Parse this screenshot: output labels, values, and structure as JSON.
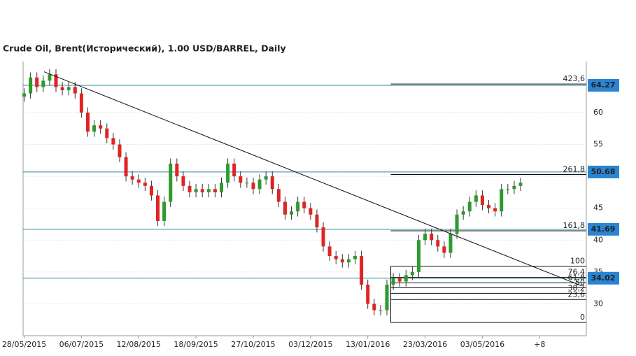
{
  "chart_data": {
    "type": "candlestick",
    "title": "Crude Oil, Brent(Исторический), 1.00 USD/BARREL, Daily",
    "x": [
      0,
      3,
      6,
      9,
      12,
      15,
      18,
      21,
      24,
      27,
      30,
      33,
      36,
      39,
      42,
      45,
      48,
      51,
      54,
      57,
      60,
      63,
      66,
      69,
      72,
      75,
      78,
      81,
      84,
      87,
      90,
      93,
      96,
      99,
      102,
      105,
      108,
      111,
      114,
      117,
      120,
      123,
      126,
      129,
      132,
      135,
      138,
      141,
      144,
      147,
      150,
      153,
      156,
      159,
      162,
      165,
      168,
      171,
      174,
      177,
      180,
      183,
      186,
      189,
      192,
      195,
      198,
      201,
      204,
      207,
      210,
      213,
      216,
      219,
      222,
      225,
      228,
      231,
      234
    ],
    "open": [
      62.5,
      63,
      65.5,
      64,
      65,
      66,
      64,
      63.5,
      64,
      63,
      60,
      57,
      58,
      57.5,
      56,
      55,
      53,
      50,
      49.5,
      49,
      48.5,
      47,
      43,
      46,
      52,
      50,
      48.5,
      47.5,
      48,
      47.5,
      48,
      47.5,
      49,
      52,
      50,
      49,
      49,
      48,
      49.5,
      50,
      48,
      46,
      44,
      44.5,
      46,
      45,
      44,
      42,
      39,
      37.5,
      37,
      36.5,
      37,
      37.5,
      33,
      30,
      29,
      29,
      33,
      34,
      33.5,
      34.5,
      35,
      40,
      41,
      40,
      39,
      38,
      41,
      44,
      44.5,
      46,
      47,
      45.5,
      45,
      44.5,
      48,
      48,
      48.5
    ],
    "high": [
      63.8,
      66.3,
      66.3,
      65.8,
      66.8,
      66.8,
      64.8,
      64.8,
      64.8,
      63.8,
      60.8,
      58.8,
      58.8,
      58.3,
      56.8,
      55.8,
      53.8,
      50.8,
      50.3,
      49.8,
      49.3,
      47.8,
      46.8,
      52.8,
      52.8,
      50.8,
      49.3,
      48.8,
      48.8,
      48.8,
      48.8,
      49.8,
      52.8,
      52.8,
      50.8,
      49.8,
      49.8,
      50.3,
      50.8,
      50.8,
      48.8,
      46.8,
      45.3,
      46.8,
      46.8,
      45.8,
      44.8,
      42.8,
      39.8,
      38.3,
      37.8,
      37.8,
      38.3,
      38.3,
      33.8,
      30.8,
      29.8,
      33.8,
      34.8,
      34.8,
      35.3,
      35.8,
      40.8,
      41.8,
      41.8,
      40.8,
      39.8,
      41.8,
      44.8,
      45.3,
      46.8,
      47.8,
      47.8,
      46.3,
      45.8,
      48.8,
      48.8,
      49.3,
      49.8
    ],
    "low": [
      61.7,
      62.2,
      63.2,
      63.2,
      64.2,
      63.2,
      62.7,
      62.7,
      62.2,
      59.2,
      56.2,
      56.2,
      56.7,
      55.2,
      54.2,
      52.2,
      49.2,
      48.7,
      48.2,
      47.7,
      46.2,
      42.2,
      42.2,
      45.2,
      49.2,
      47.7,
      46.7,
      46.7,
      46.7,
      46.7,
      46.7,
      46.7,
      48.2,
      49.2,
      48.2,
      48.2,
      47.2,
      47.2,
      48.7,
      47.2,
      45.2,
      43.2,
      43.2,
      43.7,
      44.2,
      43.2,
      41.2,
      38.2,
      36.7,
      36.2,
      35.7,
      35.7,
      36.2,
      32.2,
      29.2,
      28.2,
      28.2,
      28.2,
      32.2,
      32.7,
      32.7,
      33.7,
      34.2,
      39.2,
      39.2,
      38.2,
      37.2,
      37.2,
      40.2,
      43.2,
      43.7,
      45.2,
      44.7,
      44.2,
      43.7,
      43.7,
      47.2,
      47.2,
      47.7
    ],
    "close": [
      63,
      65.5,
      64,
      65,
      66,
      64,
      63.5,
      64,
      63,
      60,
      57,
      58,
      57.5,
      56,
      55,
      53,
      50,
      49.5,
      49,
      48.5,
      47,
      43,
      46,
      52,
      50,
      48.5,
      47.5,
      48,
      47.5,
      48,
      47.5,
      49,
      52,
      50,
      49,
      49,
      48,
      49.5,
      50,
      48,
      46,
      44,
      44.5,
      46,
      45,
      44,
      42,
      39,
      37.5,
      37,
      36.5,
      37,
      37.5,
      33,
      30,
      29,
      29,
      33,
      34,
      33.5,
      34.5,
      35,
      40,
      41,
      40,
      39,
      38,
      41,
      44,
      44.5,
      46,
      47,
      45.5,
      45,
      44.5,
      48,
      48,
      48.5,
      49
    ],
    "up_color": "#2e9a2e",
    "down_color": "#e02424",
    "xlim": [
      -0.5,
      265
    ],
    "xticks": [
      {
        "value": 0,
        "label": "28/05/2015"
      },
      {
        "value": 27,
        "label": "06/07/2015"
      },
      {
        "value": 54,
        "label": "12/08/2015"
      },
      {
        "value": 81,
        "label": "18/09/2015"
      },
      {
        "value": 108,
        "label": "27/10/2015"
      },
      {
        "value": 135,
        "label": "03/12/2015"
      },
      {
        "value": 162,
        "label": "13/01/2016"
      },
      {
        "value": 189,
        "label": "23/03/2016"
      },
      {
        "value": 216,
        "label": "03/05/2016"
      },
      {
        "value": 243,
        "label": "+8"
      }
    ],
    "ylim": [
      25,
      68
    ],
    "yticks": [
      30,
      35,
      40,
      45,
      50,
      55,
      60
    ],
    "grid": true,
    "price_lines": [
      64.27,
      50.68,
      41.69,
      34.02
    ],
    "price_line_color": "#2e8b9a",
    "price_label_color": "#2a84d2",
    "trendline": {
      "x": [
        9.4,
        262.5
      ],
      "y": [
        66.4,
        32.85
      ]
    },
    "fib_start": 172.8,
    "fib_levels": [
      {
        "value": 64.47,
        "label": "423,6"
      },
      {
        "value": 50.29,
        "label": "261,8"
      },
      {
        "value": 41.46,
        "label": "161,8"
      },
      {
        "value": 35.9,
        "label": "100"
      },
      {
        "value": 34.15,
        "label": "76,4"
      },
      {
        "value": 33.28,
        "label": "61,8"
      },
      {
        "value": 32.52,
        "label": "50"
      },
      {
        "value": 31.65,
        "label": "38,2"
      },
      {
        "value": 30.67,
        "label": "23,6"
      },
      {
        "value": 27.07,
        "label": "0"
      }
    ]
  }
}
